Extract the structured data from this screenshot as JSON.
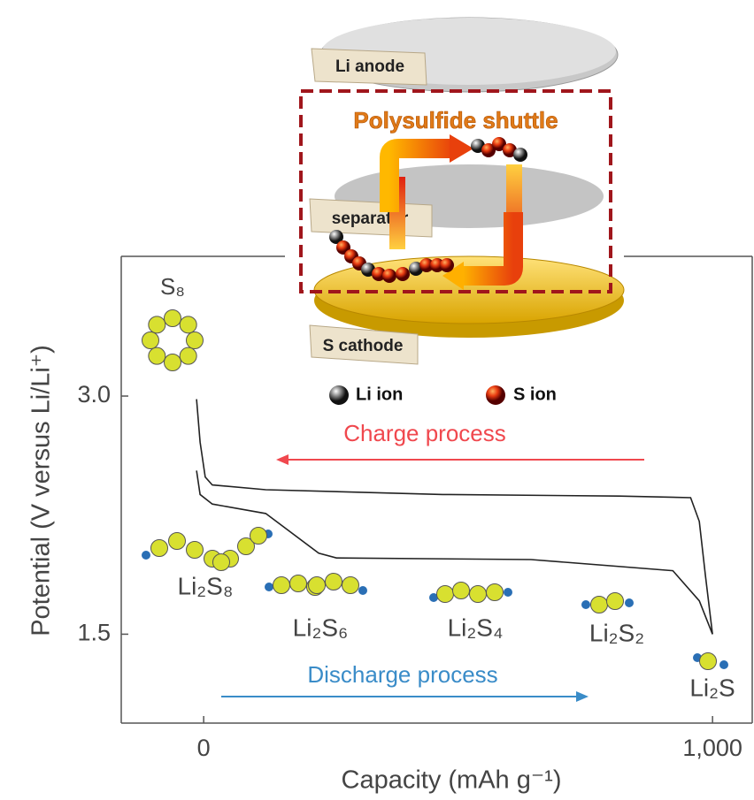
{
  "chart_data": {
    "type": "line",
    "xlabel": "Capacity (mAh g⁻¹)",
    "ylabel": "Potential (V versus Li/Li⁺)",
    "xlim": [
      -162,
      1078
    ],
    "ylim": [
      0.94,
      3.88
    ],
    "xticks": [
      0,
      {
        "value": 1000,
        "label": "1,000"
      }
    ],
    "yticks": [
      1.5,
      {
        "value": 3,
        "label": "3.0"
      }
    ],
    "series": [
      {
        "color": "#222222",
        "x": [
          -14,
          -7,
          3,
          17,
          122,
          470,
          817,
          957,
          974,
          986,
          1000
        ],
        "values": [
          2.98,
          2.71,
          2.49,
          2.44,
          2.41,
          2.38,
          2.37,
          2.36,
          2.21,
          1.87,
          1.5
        ]
      },
      {
        "color": "#222222",
        "x": [
          -14,
          -7,
          17,
          122,
          226,
          261,
          643,
          922,
          974,
          1000
        ],
        "values": [
          2.53,
          2.38,
          2.32,
          2.26,
          2.01,
          1.98,
          1.97,
          1.9,
          1.71,
          1.5
        ]
      }
    ],
    "annotations": [
      "S₈",
      "Li₂S₈",
      "Li₂S₆",
      "Li₂S₄",
      "Li₂S₂",
      "Li₂S"
    ],
    "arrows": [
      {
        "text": "Charge process",
        "color": "#f0484e"
      },
      {
        "text": "Discharge process",
        "color": "#3a8cc8"
      }
    ]
  },
  "diagram": {
    "title": "Polysulfide shuttle",
    "anode": "Li anode",
    "separator": "separator",
    "cathode": "S cathode",
    "li_ion": "Li ion",
    "s_ion": "S ion"
  }
}
